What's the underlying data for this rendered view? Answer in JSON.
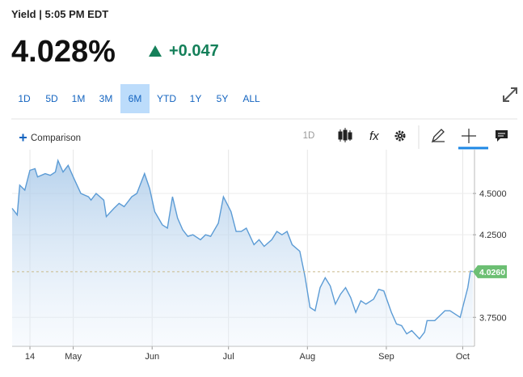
{
  "header": {
    "title": "Yield | 5:05 PM EDT",
    "price": "4.028%",
    "change": "+0.047"
  },
  "ranges": {
    "items": [
      "1D",
      "5D",
      "1M",
      "3M",
      "6M",
      "YTD",
      "1Y",
      "5Y",
      "ALL"
    ],
    "selected": 4
  },
  "toolbar": {
    "comparison": "Comparison",
    "interval": "1D"
  },
  "chart_data": {
    "type": "line",
    "color": "#5b9bd5",
    "x": [
      0,
      2,
      3,
      5,
      7,
      9,
      10,
      13,
      15,
      17,
      18,
      20,
      22,
      24,
      27,
      30,
      31,
      33,
      36,
      37,
      40,
      42,
      44,
      47,
      49,
      52,
      54,
      56,
      59,
      61,
      63,
      65,
      67,
      69,
      71,
      74,
      76,
      78,
      81,
      83,
      86,
      88,
      90,
      92,
      95,
      97,
      99,
      102,
      104,
      106,
      108,
      110,
      113,
      115,
      117,
      119,
      121,
      123,
      125,
      127,
      129,
      131,
      133,
      135,
      137,
      139,
      142,
      144,
      146,
      149,
      151,
      153,
      155,
      157,
      160,
      162,
      163,
      166,
      168,
      170,
      172,
      174,
      176,
      177,
      179,
      180,
      181
    ],
    "values": [
      4.41,
      4.37,
      4.55,
      4.52,
      4.64,
      4.65,
      4.6,
      4.62,
      4.61,
      4.63,
      4.7,
      4.63,
      4.67,
      4.6,
      4.5,
      4.48,
      4.46,
      4.5,
      4.46,
      4.36,
      4.41,
      4.44,
      4.42,
      4.48,
      4.5,
      4.62,
      4.53,
      4.39,
      4.31,
      4.29,
      4.48,
      4.35,
      4.28,
      4.24,
      4.25,
      4.22,
      4.25,
      4.24,
      4.32,
      4.48,
      4.39,
      4.27,
      4.27,
      4.29,
      4.19,
      4.22,
      4.18,
      4.22,
      4.27,
      4.25,
      4.27,
      4.19,
      4.15,
      4.0,
      3.81,
      3.79,
      3.93,
      3.99,
      3.94,
      3.83,
      3.89,
      3.93,
      3.87,
      3.78,
      3.85,
      3.83,
      3.86,
      3.92,
      3.91,
      3.78,
      3.71,
      3.7,
      3.65,
      3.67,
      3.62,
      3.66,
      3.73,
      3.73,
      3.76,
      3.79,
      3.79,
      3.77,
      3.75,
      3.81,
      3.93,
      4.03,
      4.028
    ],
    "xlim": [
      0,
      181
    ],
    "ylim": [
      3.575,
      4.765
    ],
    "xticks": [
      {
        "value": 7,
        "label": "14"
      },
      {
        "value": 24,
        "label": "May"
      },
      {
        "value": 55,
        "label": "Jun"
      },
      {
        "value": 85,
        "label": "Jul"
      },
      {
        "value": 116,
        "label": "Aug"
      },
      {
        "value": 147,
        "label": "Sep"
      },
      {
        "value": 177,
        "label": "Oct"
      }
    ],
    "yticks": [
      {
        "value": 3.75,
        "label": "3.7500"
      },
      {
        "value": 4.25,
        "label": "4.2500"
      },
      {
        "value": 4.5,
        "label": "4.5000"
      }
    ],
    "grid": true,
    "annotations": [
      {
        "value": 4.026,
        "label": "4.0260"
      }
    ]
  }
}
